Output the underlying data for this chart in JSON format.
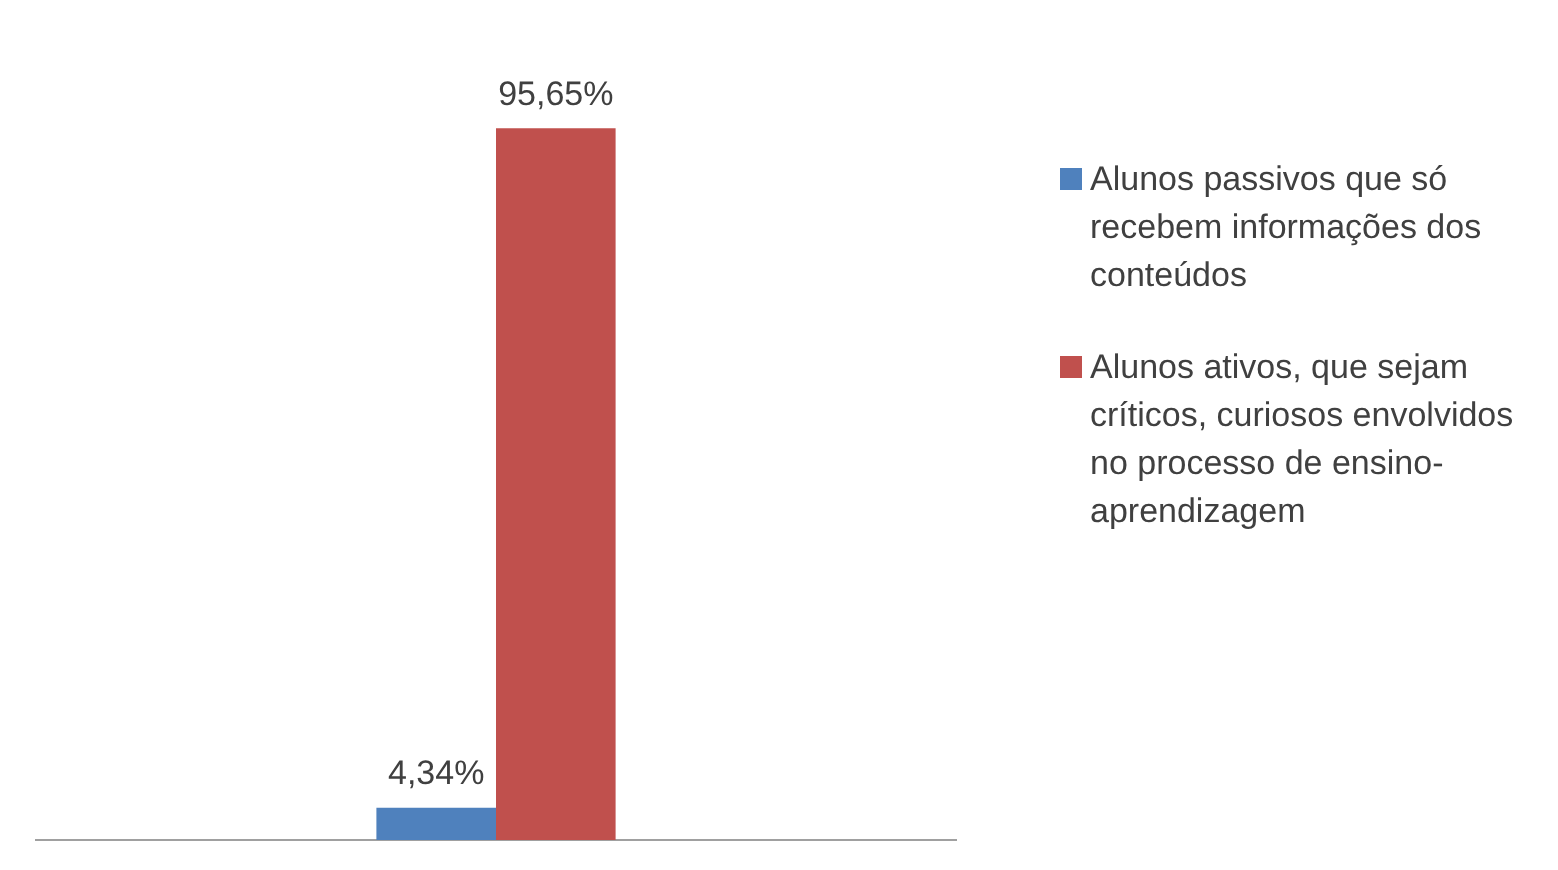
{
  "chart_data": {
    "type": "bar",
    "categories": [
      null
    ],
    "series": [
      {
        "name": "Alunos passivos que só recebem informações dos conteúdos",
        "color": "#4f81bd",
        "values": [
          4.34
        ],
        "value_labels": [
          "4,34%"
        ]
      },
      {
        "name": "Alunos ativos, que sejam críticos, curiosos envolvidos no processo de ensino-aprendizagem",
        "color": "#c0504d",
        "values": [
          95.65
        ],
        "value_labels": [
          "95,65%"
        ]
      }
    ],
    "legend": "right"
  }
}
